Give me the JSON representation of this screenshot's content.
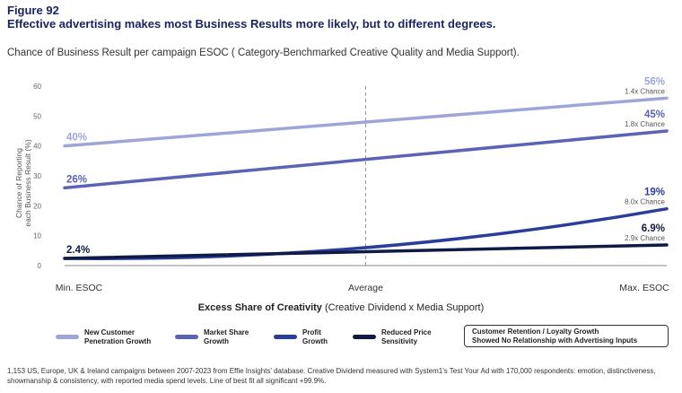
{
  "header": {
    "figure_label": "Figure 92",
    "title": "Effective advertising makes most Business Results more likely, but to different degrees.",
    "subtitle": "Chance of Business Result per campaign ESOC ( Category-Benchmarked Creative Quality and Media Support)."
  },
  "chart_data": {
    "type": "line",
    "x_categories": [
      "Min. ESOC",
      "Average",
      "Max. ESOC"
    ],
    "xlabel_bold": "Excess Share of Creativity",
    "xlabel_rest": " (Creative Dividend x Media Support)",
    "ylabel_line1": "Chance of Reporting",
    "ylabel_line2": "each Business Result (%)",
    "ylim": [
      0,
      60
    ],
    "yticks": [
      "0",
      "10",
      "20",
      "30",
      "40",
      "50",
      "60"
    ],
    "series": [
      {
        "name": "New Customer Penetration Growth",
        "color": "#9fa5d8",
        "start": 40,
        "mid": 47.5,
        "end": 56,
        "curve": 0,
        "start_label": "40%",
        "end_label": "56%",
        "chance": "1.4x Chance"
      },
      {
        "name": "Market Share Growth",
        "color": "#5b63b6",
        "start": 26,
        "mid": 35.5,
        "end": 45,
        "curve": 0,
        "start_label": "26%",
        "end_label": "45%",
        "chance": "1.8x Chance"
      },
      {
        "name": "Profit Growth",
        "color": "#2b3d9a",
        "start": 2.4,
        "mid": 6,
        "end": 19,
        "curve": 1,
        "start_label": "",
        "end_label": "19%",
        "chance": "8.0x Chance"
      },
      {
        "name": "Reduced Price Sensitivity",
        "color": "#0f1a45",
        "start": 2.4,
        "mid": 4.6,
        "end": 6.9,
        "curve": 0,
        "start_label": "2.4%",
        "end_label": "6.9%",
        "chance": "2.9x Chance"
      }
    ]
  },
  "legend": {
    "items": [
      {
        "line1": "New Customer",
        "line2": "Penetration Growth",
        "color": "#9fa5d8"
      },
      {
        "line1": "Market Share",
        "line2": "Growth",
        "color": "#5b63b6"
      },
      {
        "line1": "Profit",
        "line2": "Growth",
        "color": "#2b3d9a"
      },
      {
        "line1": "Reduced Price",
        "line2": "Sensitivity",
        "color": "#0f1a45"
      }
    ],
    "note_line1": "Customer Retention / Loyalty Growth",
    "note_line2": "Showed No Relationship with Advertising Inputs"
  },
  "footnote": "1,153 US, Europe, UK & Ireland campaigns between 2007-2023 from Effie Insights' database. Creative Dividend measured with System1's Test Your Ad with 170,000 respondents: emotion, distinctiveness, showmanship & consistency, with reported media spend levels. Line of best fit all significant +99.9%."
}
